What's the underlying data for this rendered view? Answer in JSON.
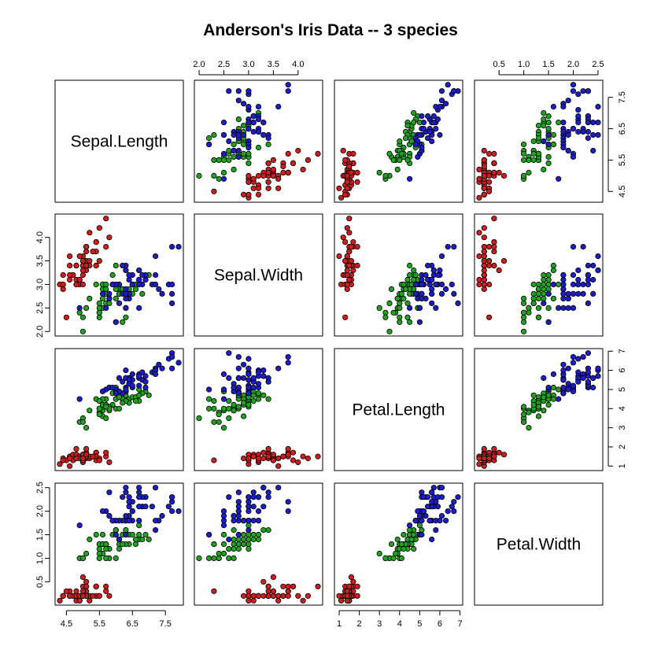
{
  "title": "Anderson's Iris Data -- 3 species",
  "chart_data": {
    "type": "scatter",
    "title": "Anderson's Iris Data -- 3 species",
    "variables": [
      "Sepal.Length",
      "Sepal.Width",
      "Petal.Length",
      "Petal.Width"
    ],
    "ranges": [
      [
        4.3,
        7.9
      ],
      [
        2.0,
        4.4
      ],
      [
        1.0,
        6.9
      ],
      [
        0.1,
        2.5
      ]
    ],
    "ticks": [
      [
        "4.5",
        "5.5",
        "6.5",
        "7.5"
      ],
      [
        "2.0",
        "2.5",
        "3.0",
        "3.5",
        "4.0"
      ],
      [
        "1",
        "2",
        "3",
        "4",
        "5",
        "6",
        "7"
      ],
      [
        "0.5",
        "1.0",
        "1.5",
        "2.0",
        "2.5"
      ]
    ],
    "tick_values": [
      [
        4.5,
        5.5,
        6.5,
        7.5
      ],
      [
        2.0,
        2.5,
        3.0,
        3.5,
        4.0
      ],
      [
        1,
        2,
        3,
        4,
        5,
        6,
        7
      ],
      [
        0.5,
        1.0,
        1.5,
        2.0,
        2.5
      ]
    ],
    "grid": false,
    "series": [
      {
        "color": "#d01c1c",
        "points": [
          [
            5.1,
            3.5,
            1.4,
            0.2
          ],
          [
            4.9,
            3.0,
            1.4,
            0.2
          ],
          [
            4.7,
            3.2,
            1.3,
            0.2
          ],
          [
            4.6,
            3.1,
            1.5,
            0.2
          ],
          [
            5.0,
            3.6,
            1.4,
            0.2
          ],
          [
            5.4,
            3.9,
            1.7,
            0.4
          ],
          [
            4.6,
            3.4,
            1.4,
            0.3
          ],
          [
            5.0,
            3.4,
            1.5,
            0.2
          ],
          [
            4.4,
            2.9,
            1.4,
            0.2
          ],
          [
            4.9,
            3.1,
            1.5,
            0.1
          ],
          [
            5.4,
            3.7,
            1.5,
            0.2
          ],
          [
            4.8,
            3.4,
            1.6,
            0.2
          ],
          [
            4.8,
            3.0,
            1.4,
            0.1
          ],
          [
            4.3,
            3.0,
            1.1,
            0.1
          ],
          [
            5.8,
            4.0,
            1.2,
            0.2
          ],
          [
            5.7,
            4.4,
            1.5,
            0.4
          ],
          [
            5.4,
            3.9,
            1.3,
            0.4
          ],
          [
            5.1,
            3.5,
            1.4,
            0.3
          ],
          [
            5.7,
            3.8,
            1.7,
            0.3
          ],
          [
            5.1,
            3.8,
            1.5,
            0.3
          ],
          [
            5.4,
            3.4,
            1.7,
            0.2
          ],
          [
            5.1,
            3.7,
            1.5,
            0.4
          ],
          [
            4.6,
            3.6,
            1.0,
            0.2
          ],
          [
            5.1,
            3.3,
            1.7,
            0.5
          ],
          [
            4.8,
            3.4,
            1.9,
            0.2
          ],
          [
            5.0,
            3.0,
            1.6,
            0.2
          ],
          [
            5.0,
            3.4,
            1.6,
            0.4
          ],
          [
            5.2,
            3.5,
            1.5,
            0.2
          ],
          [
            5.2,
            3.4,
            1.4,
            0.2
          ],
          [
            4.7,
            3.2,
            1.6,
            0.2
          ],
          [
            4.8,
            3.1,
            1.6,
            0.2
          ],
          [
            5.4,
            3.4,
            1.5,
            0.4
          ],
          [
            5.2,
            4.1,
            1.5,
            0.1
          ],
          [
            5.5,
            4.2,
            1.4,
            0.2
          ],
          [
            4.9,
            3.1,
            1.5,
            0.2
          ],
          [
            5.0,
            3.2,
            1.2,
            0.2
          ],
          [
            5.5,
            3.5,
            1.3,
            0.2
          ],
          [
            4.9,
            3.6,
            1.4,
            0.1
          ],
          [
            4.4,
            3.0,
            1.3,
            0.2
          ],
          [
            5.1,
            3.4,
            1.5,
            0.2
          ],
          [
            5.0,
            3.5,
            1.3,
            0.3
          ],
          [
            4.5,
            2.3,
            1.3,
            0.3
          ],
          [
            4.4,
            3.2,
            1.3,
            0.2
          ],
          [
            5.0,
            3.5,
            1.6,
            0.6
          ],
          [
            5.1,
            3.8,
            1.9,
            0.4
          ],
          [
            4.8,
            3.0,
            1.4,
            0.3
          ],
          [
            5.1,
            3.8,
            1.6,
            0.2
          ],
          [
            4.6,
            3.2,
            1.4,
            0.2
          ],
          [
            5.3,
            3.7,
            1.5,
            0.2
          ],
          [
            5.0,
            3.3,
            1.4,
            0.2
          ]
        ]
      },
      {
        "color": "#1fa31f",
        "points": [
          [
            7.0,
            3.2,
            4.7,
            1.4
          ],
          [
            6.4,
            3.2,
            4.5,
            1.5
          ],
          [
            6.9,
            3.1,
            4.9,
            1.5
          ],
          [
            5.5,
            2.3,
            4.0,
            1.3
          ],
          [
            6.5,
            2.8,
            4.6,
            1.5
          ],
          [
            5.7,
            2.8,
            4.5,
            1.3
          ],
          [
            6.3,
            3.3,
            4.7,
            1.6
          ],
          [
            4.9,
            2.4,
            3.3,
            1.0
          ],
          [
            6.6,
            2.9,
            4.6,
            1.3
          ],
          [
            5.2,
            2.7,
            3.9,
            1.4
          ],
          [
            5.0,
            2.0,
            3.5,
            1.0
          ],
          [
            5.9,
            3.0,
            4.2,
            1.5
          ],
          [
            6.0,
            2.2,
            4.0,
            1.0
          ],
          [
            6.1,
            2.9,
            4.7,
            1.4
          ],
          [
            5.6,
            2.9,
            3.6,
            1.3
          ],
          [
            6.7,
            3.1,
            4.4,
            1.4
          ],
          [
            5.6,
            3.0,
            4.5,
            1.5
          ],
          [
            5.8,
            2.7,
            4.1,
            1.0
          ],
          [
            6.2,
            2.2,
            4.5,
            1.5
          ],
          [
            5.6,
            2.5,
            3.9,
            1.1
          ],
          [
            5.9,
            3.2,
            4.8,
            1.8
          ],
          [
            6.1,
            2.8,
            4.0,
            1.3
          ],
          [
            6.3,
            2.5,
            4.9,
            1.5
          ],
          [
            6.1,
            2.8,
            4.7,
            1.2
          ],
          [
            6.4,
            2.9,
            4.3,
            1.3
          ],
          [
            6.6,
            3.0,
            4.4,
            1.4
          ],
          [
            6.8,
            2.8,
            4.8,
            1.4
          ],
          [
            6.7,
            3.0,
            5.0,
            1.7
          ],
          [
            6.0,
            2.9,
            4.5,
            1.5
          ],
          [
            5.7,
            2.6,
            3.5,
            1.0
          ],
          [
            5.5,
            2.4,
            3.8,
            1.1
          ],
          [
            5.5,
            2.4,
            3.7,
            1.0
          ],
          [
            5.8,
            2.7,
            3.9,
            1.2
          ],
          [
            6.0,
            2.7,
            5.1,
            1.6
          ],
          [
            5.4,
            3.0,
            4.5,
            1.5
          ],
          [
            6.0,
            3.4,
            4.5,
            1.6
          ],
          [
            6.7,
            3.1,
            4.7,
            1.5
          ],
          [
            6.3,
            2.3,
            4.4,
            1.3
          ],
          [
            5.6,
            3.0,
            4.1,
            1.3
          ],
          [
            5.5,
            2.5,
            4.0,
            1.3
          ],
          [
            5.5,
            2.6,
            4.4,
            1.2
          ],
          [
            6.1,
            3.0,
            4.6,
            1.4
          ],
          [
            5.8,
            2.6,
            4.0,
            1.2
          ],
          [
            5.0,
            2.3,
            3.3,
            1.0
          ],
          [
            5.6,
            2.7,
            4.2,
            1.3
          ],
          [
            5.7,
            3.0,
            4.2,
            1.2
          ],
          [
            5.7,
            2.9,
            4.2,
            1.3
          ],
          [
            6.2,
            2.9,
            4.3,
            1.3
          ],
          [
            5.1,
            2.5,
            3.0,
            1.1
          ],
          [
            5.7,
            2.8,
            4.1,
            1.3
          ]
        ]
      },
      {
        "color": "#1c1cc8",
        "points": [
          [
            6.3,
            3.3,
            6.0,
            2.5
          ],
          [
            5.8,
            2.7,
            5.1,
            1.9
          ],
          [
            7.1,
            3.0,
            5.9,
            2.1
          ],
          [
            6.3,
            2.9,
            5.6,
            1.8
          ],
          [
            6.5,
            3.0,
            5.8,
            2.2
          ],
          [
            7.6,
            3.0,
            6.6,
            2.1
          ],
          [
            4.9,
            2.5,
            4.5,
            1.7
          ],
          [
            7.3,
            2.9,
            6.3,
            1.8
          ],
          [
            6.7,
            2.5,
            5.8,
            1.8
          ],
          [
            7.2,
            3.6,
            6.1,
            2.5
          ],
          [
            6.5,
            3.2,
            5.1,
            2.0
          ],
          [
            6.4,
            2.7,
            5.3,
            1.9
          ],
          [
            6.8,
            3.0,
            5.5,
            2.1
          ],
          [
            5.7,
            2.5,
            5.0,
            2.0
          ],
          [
            5.8,
            2.8,
            5.1,
            2.4
          ],
          [
            6.4,
            3.2,
            5.3,
            2.3
          ],
          [
            6.5,
            3.0,
            5.5,
            1.8
          ],
          [
            7.7,
            3.8,
            6.7,
            2.2
          ],
          [
            7.7,
            2.6,
            6.9,
            2.3
          ],
          [
            6.0,
            2.2,
            5.0,
            1.5
          ],
          [
            6.9,
            3.2,
            5.7,
            2.3
          ],
          [
            5.6,
            2.8,
            4.9,
            2.0
          ],
          [
            7.7,
            2.8,
            6.7,
            2.0
          ],
          [
            6.3,
            2.7,
            4.9,
            1.8
          ],
          [
            6.7,
            3.3,
            5.7,
            2.1
          ],
          [
            7.2,
            3.2,
            6.0,
            1.8
          ],
          [
            6.2,
            2.8,
            4.8,
            1.8
          ],
          [
            6.1,
            3.0,
            4.9,
            1.8
          ],
          [
            6.4,
            2.8,
            5.6,
            2.1
          ],
          [
            7.2,
            3.0,
            5.8,
            1.6
          ],
          [
            7.4,
            2.8,
            6.1,
            1.9
          ],
          [
            7.9,
            3.8,
            6.4,
            2.0
          ],
          [
            6.4,
            2.8,
            5.6,
            2.2
          ],
          [
            6.3,
            2.8,
            5.1,
            1.5
          ],
          [
            6.1,
            2.6,
            5.6,
            1.4
          ],
          [
            7.7,
            3.0,
            6.1,
            2.3
          ],
          [
            6.3,
            3.4,
            5.6,
            2.4
          ],
          [
            6.4,
            3.1,
            5.5,
            1.8
          ],
          [
            6.0,
            3.0,
            4.8,
            1.8
          ],
          [
            6.9,
            3.1,
            5.4,
            2.1
          ],
          [
            6.7,
            3.1,
            5.6,
            2.4
          ],
          [
            6.9,
            3.1,
            5.1,
            2.3
          ],
          [
            5.8,
            2.7,
            5.1,
            1.9
          ],
          [
            6.8,
            3.2,
            5.9,
            2.3
          ],
          [
            6.7,
            3.3,
            5.7,
            2.5
          ],
          [
            6.7,
            3.0,
            5.2,
            2.3
          ],
          [
            6.3,
            2.5,
            5.0,
            1.9
          ],
          [
            6.5,
            3.0,
            5.2,
            2.0
          ],
          [
            6.2,
            3.4,
            5.4,
            2.3
          ],
          [
            5.9,
            3.0,
            5.1,
            1.8
          ]
        ]
      }
    ]
  }
}
